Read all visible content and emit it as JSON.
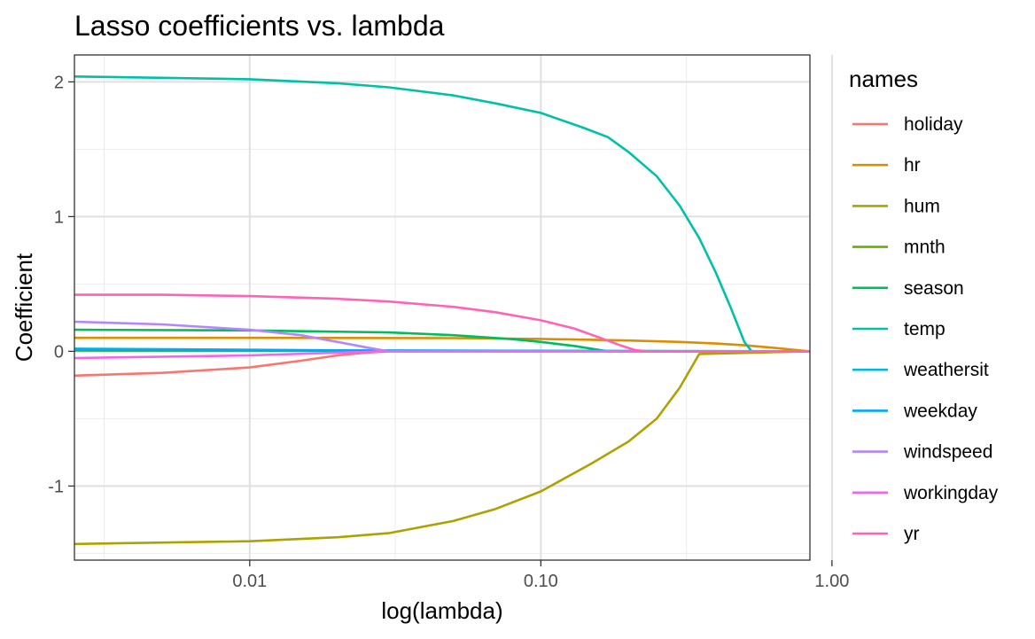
{
  "chart_data": {
    "type": "line",
    "title": "Lasso coefficients vs. lambda",
    "xlabel": "log(lambda)",
    "ylabel": "Coefficient",
    "x_scale": "log10",
    "xlim": [
      0.0025,
      0.84
    ],
    "ylim": [
      -1.55,
      2.2
    ],
    "x_ticks": [
      0.01,
      0.1,
      1.0
    ],
    "x_tick_labels": [
      "0.01",
      "0.10",
      "1.00"
    ],
    "y_ticks": [
      -1,
      0,
      1,
      2
    ],
    "y_tick_labels": [
      "-1",
      "0",
      "1",
      "2"
    ],
    "grid": true,
    "legend": {
      "title": "names",
      "position": "right"
    },
    "series": [
      {
        "name": "holiday",
        "color": "#F8766D",
        "x": [
          0.0025,
          0.005,
          0.01,
          0.015,
          0.02,
          0.025,
          0.03,
          0.84
        ],
        "y": [
          -0.18,
          -0.16,
          -0.12,
          -0.07,
          -0.03,
          -0.01,
          0,
          0
        ]
      },
      {
        "name": "hr",
        "color": "#DB8E00",
        "x": [
          0.0025,
          0.01,
          0.05,
          0.1,
          0.2,
          0.3,
          0.4,
          0.5,
          0.6,
          0.84
        ],
        "y": [
          0.1,
          0.1,
          0.098,
          0.092,
          0.08,
          0.07,
          0.058,
          0.045,
          0.03,
          0
        ]
      },
      {
        "name": "hum",
        "color": "#AEA200",
        "x": [
          0.0025,
          0.005,
          0.01,
          0.02,
          0.03,
          0.05,
          0.07,
          0.1,
          0.15,
          0.2,
          0.25,
          0.3,
          0.35,
          0.84
        ],
        "y": [
          -1.43,
          -1.42,
          -1.41,
          -1.38,
          -1.35,
          -1.26,
          -1.17,
          -1.04,
          -0.83,
          -0.67,
          -0.5,
          -0.27,
          -0.02,
          0
        ]
      },
      {
        "name": "mnth",
        "color": "#64B200",
        "x": [
          0.0025,
          0.84
        ],
        "y": [
          0.005,
          0
        ]
      },
      {
        "name": "season",
        "color": "#00BD5C",
        "x": [
          0.0025,
          0.01,
          0.03,
          0.05,
          0.08,
          0.1,
          0.13,
          0.17,
          0.84
        ],
        "y": [
          0.16,
          0.155,
          0.14,
          0.12,
          0.09,
          0.07,
          0.04,
          0,
          0
        ]
      },
      {
        "name": "temp",
        "color": "#00C1A7",
        "x": [
          0.0025,
          0.005,
          0.01,
          0.02,
          0.03,
          0.05,
          0.07,
          0.1,
          0.14,
          0.17,
          0.2,
          0.25,
          0.3,
          0.35,
          0.4,
          0.45,
          0.5,
          0.53,
          0.84
        ],
        "y": [
          2.04,
          2.03,
          2.02,
          1.99,
          1.96,
          1.9,
          1.84,
          1.77,
          1.66,
          1.59,
          1.48,
          1.3,
          1.08,
          0.84,
          0.58,
          0.32,
          0.07,
          0,
          0
        ]
      },
      {
        "name": "weathersit",
        "color": "#00BADE",
        "x": [
          0.0025,
          0.03,
          0.84
        ],
        "y": [
          0.02,
          0.005,
          0
        ]
      },
      {
        "name": "weekday",
        "color": "#00A6FF",
        "x": [
          0.0025,
          0.84
        ],
        "y": [
          0.01,
          0
        ]
      },
      {
        "name": "windspeed",
        "color": "#B385FF",
        "x": [
          0.0025,
          0.005,
          0.01,
          0.015,
          0.02,
          0.025,
          0.03,
          0.84
        ],
        "y": [
          0.22,
          0.2,
          0.16,
          0.12,
          0.07,
          0.03,
          0,
          0
        ]
      },
      {
        "name": "workingday",
        "color": "#EF67EB",
        "x": [
          0.0025,
          0.01,
          0.02,
          0.03,
          0.84
        ],
        "y": [
          -0.05,
          -0.03,
          -0.01,
          0,
          0
        ]
      },
      {
        "name": "yr",
        "color": "#FF63B6",
        "x": [
          0.0025,
          0.005,
          0.01,
          0.02,
          0.03,
          0.05,
          0.07,
          0.1,
          0.13,
          0.16,
          0.19,
          0.21,
          0.23,
          0.84
        ],
        "y": [
          0.42,
          0.42,
          0.41,
          0.39,
          0.37,
          0.33,
          0.29,
          0.23,
          0.17,
          0.1,
          0.04,
          0.01,
          0,
          0
        ]
      }
    ]
  }
}
